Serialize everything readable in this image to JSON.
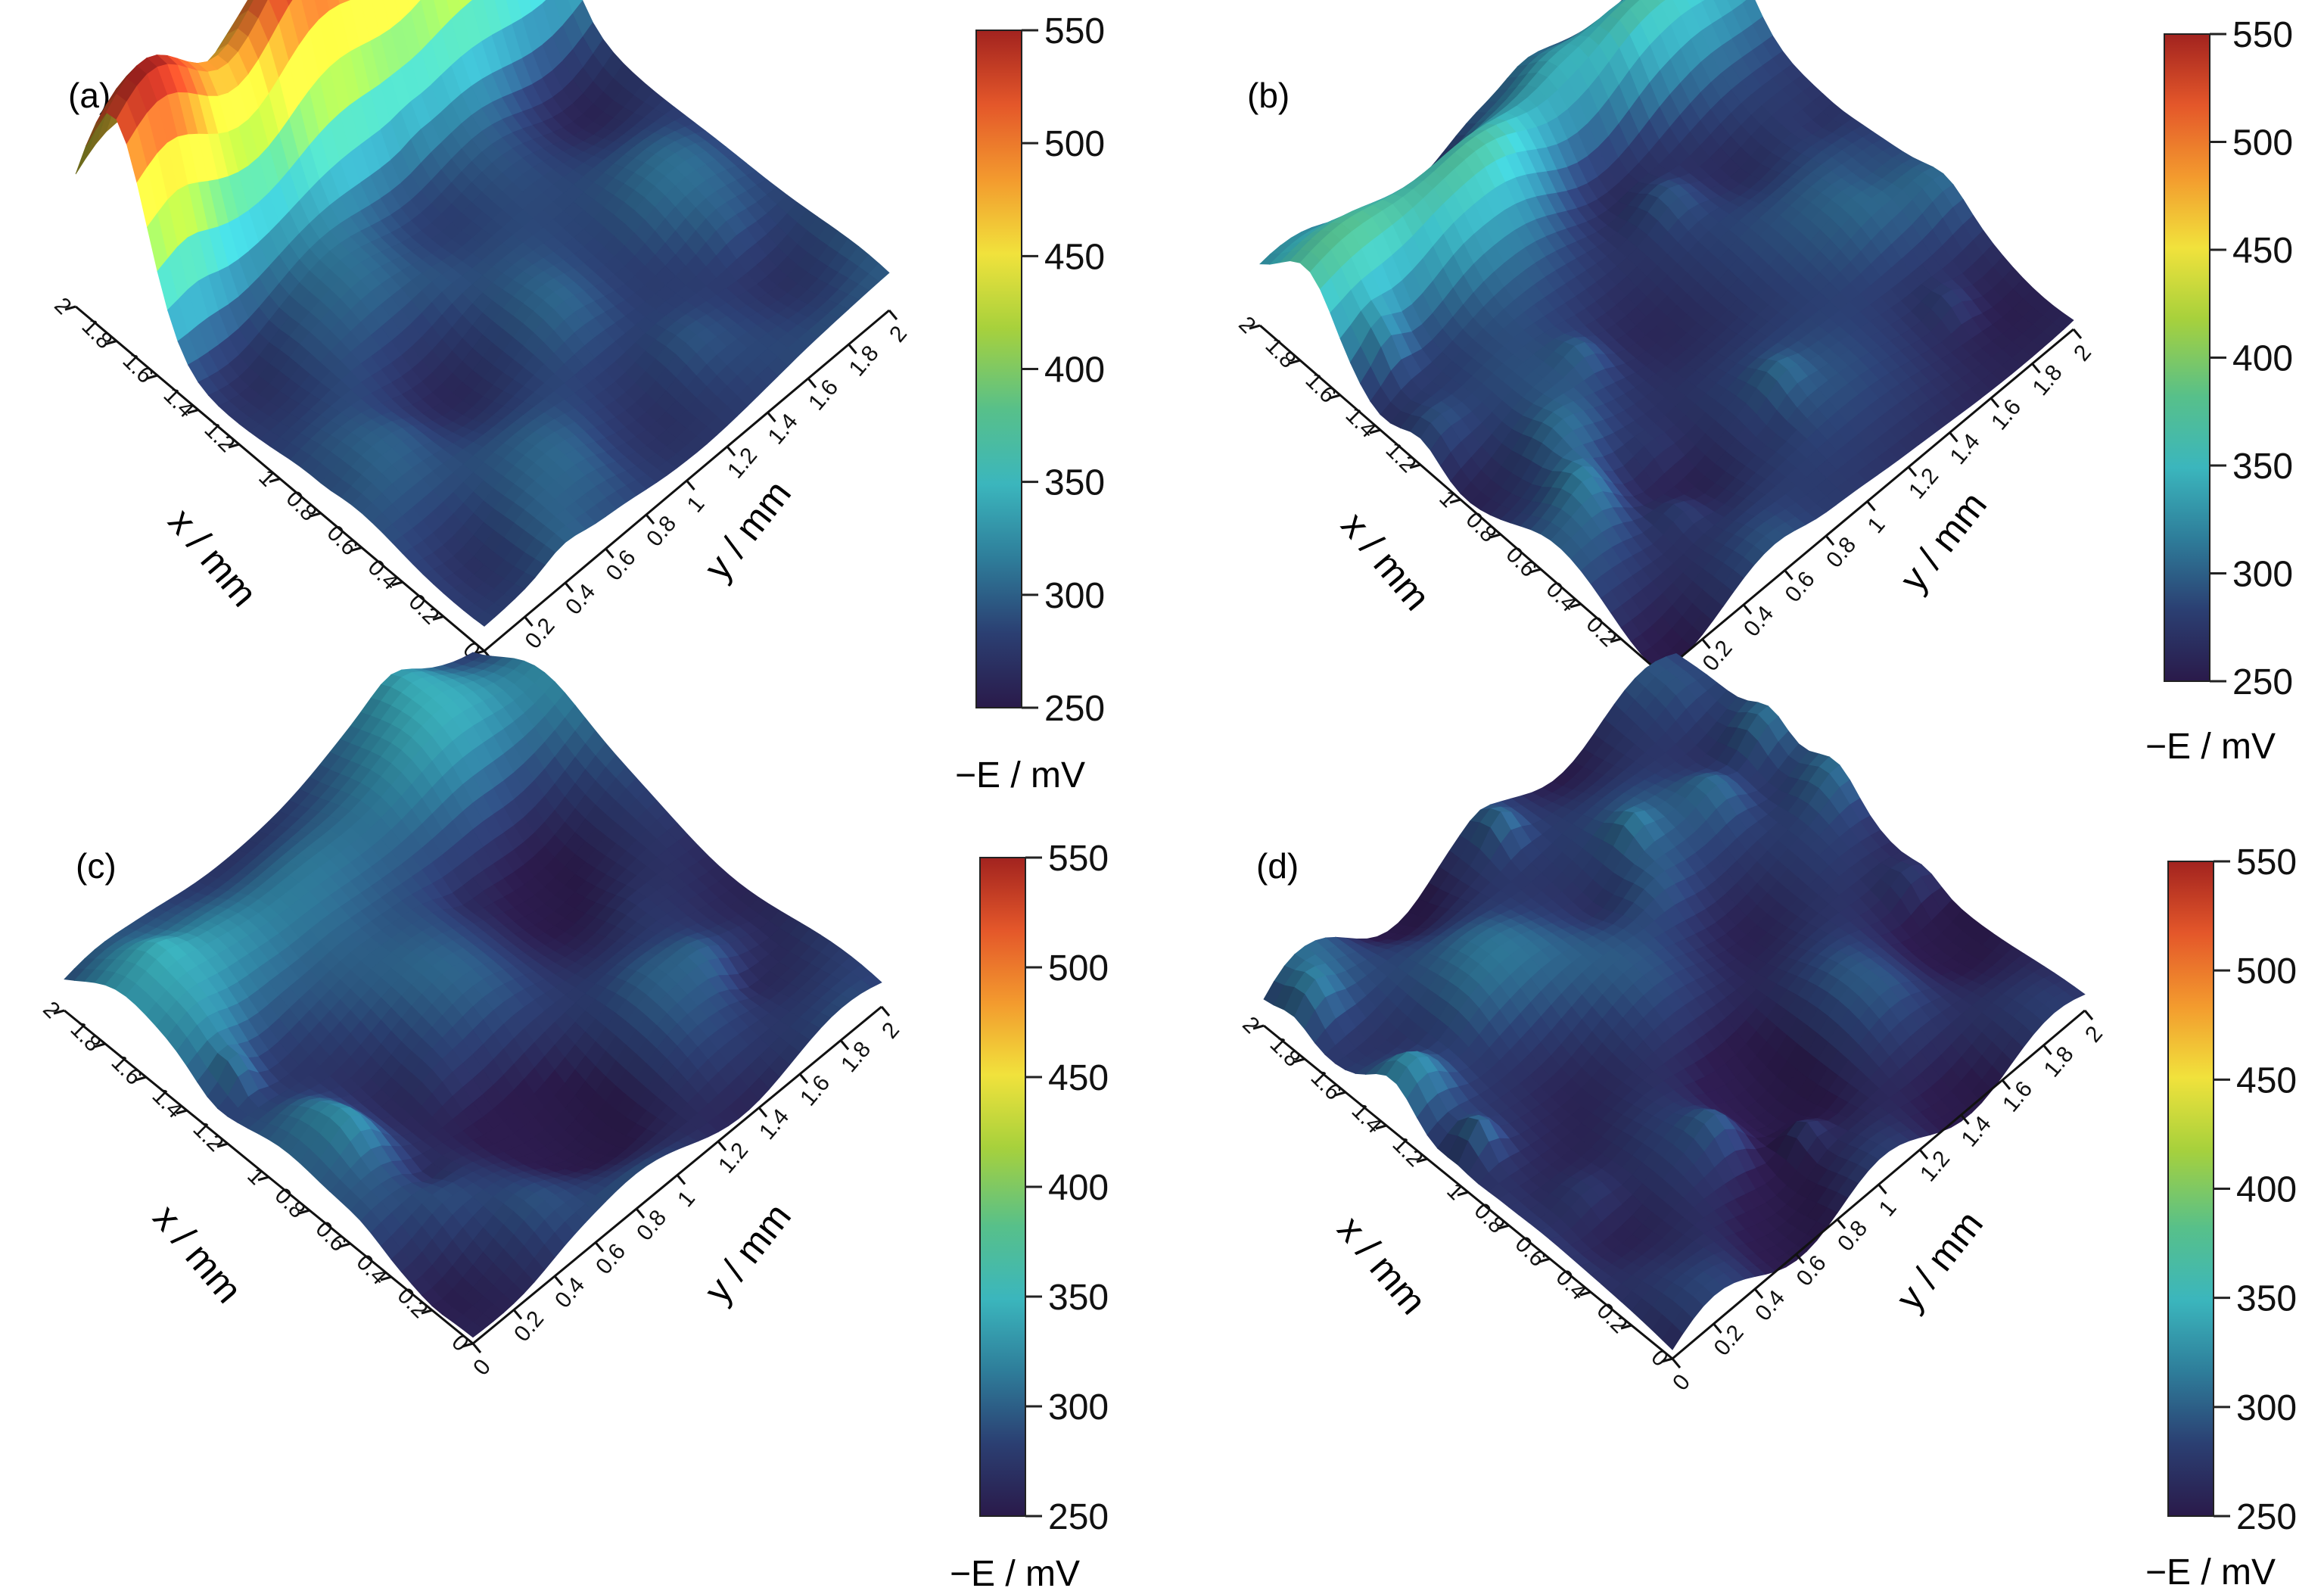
{
  "chart_data": [
    {
      "type": "surface3d",
      "panel_label": "(a)",
      "xlabel": "x / mm",
      "ylabel": "y / mm",
      "x_ticks": [
        "0",
        "0.2",
        "0.4",
        "0.6",
        "0.8",
        "1",
        "1.2",
        "1.4",
        "1.6",
        "1.8",
        "2"
      ],
      "y_ticks": [
        "0",
        "0.2",
        "0.4",
        "0.6",
        "0.8",
        "1",
        "1.2",
        "1.4",
        "1.6",
        "1.8",
        "2"
      ],
      "xlim": [
        0,
        2
      ],
      "ylim": [
        0,
        2
      ],
      "colorbar": {
        "label": "−E / mV",
        "ticks": [
          "250",
          "300",
          "350",
          "400",
          "450",
          "500",
          "550"
        ],
        "range": [
          250,
          550
        ]
      },
      "surface": {
        "base": 285,
        "ridge_x": 1.82,
        "ridge_peak": 545,
        "ridge_width": 0.16,
        "noise_amplitude": 35,
        "peak_amplitude": 20
      }
    },
    {
      "type": "surface3d",
      "panel_label": "(b)",
      "xlabel": "x / mm",
      "ylabel": "y / mm",
      "x_ticks": [
        "0",
        "0.2",
        "0.4",
        "0.6",
        "0.8",
        "1",
        "1.2",
        "1.4",
        "1.6",
        "1.8",
        "2"
      ],
      "y_ticks": [
        "0",
        "0.2",
        "0.4",
        "0.6",
        "0.8",
        "1",
        "1.2",
        "1.4",
        "1.6",
        "1.8",
        "2"
      ],
      "xlim": [
        0,
        2
      ],
      "ylim": [
        0,
        2
      ],
      "colorbar": {
        "label": "−E / mV",
        "ticks": [
          "250",
          "300",
          "350",
          "400",
          "450",
          "500",
          "550"
        ],
        "range": [
          250,
          550
        ]
      },
      "surface": {
        "base": 275,
        "ridge_x": 1.75,
        "ridge_peak": 370,
        "ridge_width": 0.14,
        "noise_amplitude": 40,
        "peak_amplitude": 45
      }
    },
    {
      "type": "surface3d",
      "panel_label": "(c)",
      "xlabel": "x / mm",
      "ylabel": "y / mm",
      "x_ticks": [
        "0",
        "0.2",
        "0.4",
        "0.6",
        "0.8",
        "1",
        "1.2",
        "1.4",
        "1.6",
        "1.8",
        "2"
      ],
      "y_ticks": [
        "0",
        "0.2",
        "0.4",
        "0.6",
        "0.8",
        "1",
        "1.2",
        "1.4",
        "1.6",
        "1.8",
        "2"
      ],
      "xlim": [
        0,
        2
      ],
      "ylim": [
        0,
        2
      ],
      "colorbar": {
        "label": "−E / mV",
        "ticks": [
          "250",
          "300",
          "350",
          "400",
          "450",
          "500",
          "550"
        ],
        "range": [
          250,
          550
        ]
      },
      "surface": {
        "base": 272,
        "ridge_x": 1.7,
        "ridge_peak": 335,
        "ridge_width": 0.2,
        "noise_amplitude": 40,
        "peak_amplitude": 50
      }
    },
    {
      "type": "surface3d",
      "panel_label": "(d)",
      "xlabel": "x / mm",
      "ylabel": "y / mm",
      "x_ticks": [
        "0",
        "0.2",
        "0.4",
        "0.6",
        "0.8",
        "1",
        "1.2",
        "1.4",
        "1.6",
        "1.8",
        "2"
      ],
      "y_ticks": [
        "0",
        "0.2",
        "0.4",
        "0.6",
        "0.8",
        "1",
        "1.2",
        "1.4",
        "1.6",
        "1.8",
        "2"
      ],
      "xlim": [
        0,
        2
      ],
      "ylim": [
        0,
        2
      ],
      "colorbar": {
        "label": "−E / mV",
        "ticks": [
          "250",
          "300",
          "350",
          "400",
          "450",
          "500",
          "550"
        ],
        "range": [
          250,
          550
        ]
      },
      "surface": {
        "base": 262,
        "ridge_x": 1.5,
        "ridge_peak": 290,
        "ridge_width": 0.3,
        "noise_amplitude": 45,
        "peak_amplitude": 55
      }
    }
  ],
  "colormap": [
    "#2a1a4a",
    "#2b3f72",
    "#2e7d9a",
    "#3bb6bd",
    "#57c08a",
    "#a7d13c",
    "#f1e23c",
    "#f39a2e",
    "#e4572a",
    "#a2231f"
  ]
}
